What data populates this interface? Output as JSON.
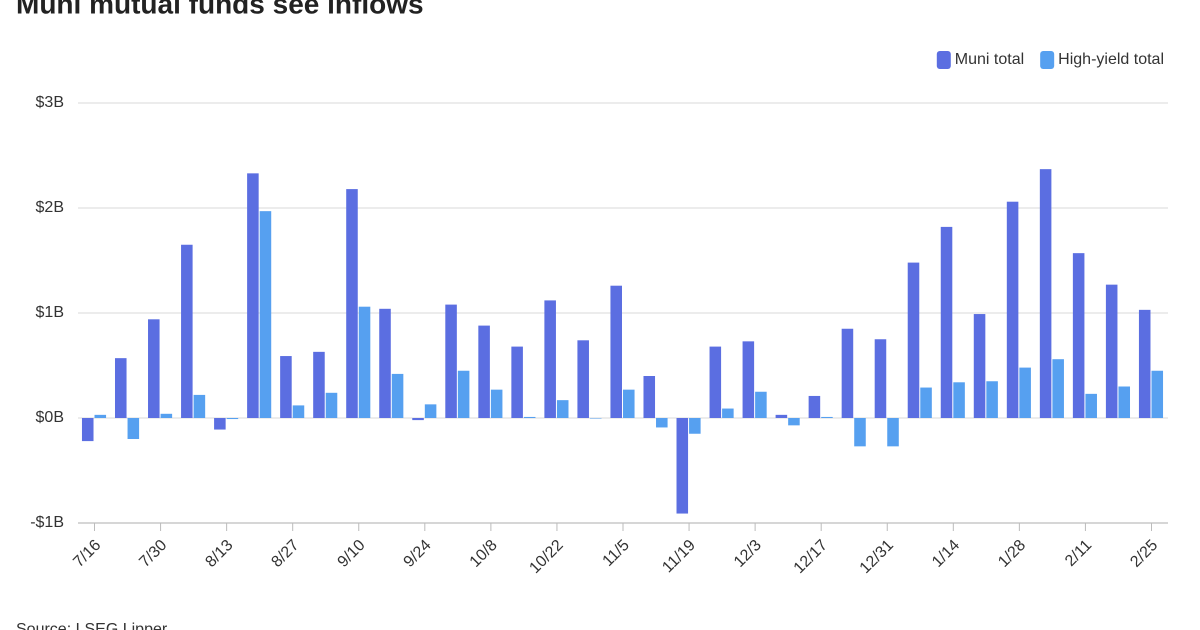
{
  "chart_data": {
    "type": "bar",
    "title": "Muni mutual funds see inflows",
    "source": "Source: LSEG Lipper",
    "categories": [
      "7/16",
      null,
      "7/30",
      null,
      "8/13",
      null,
      "8/27",
      null,
      "9/10",
      null,
      "9/24",
      null,
      "10/8",
      null,
      "10/22",
      null,
      "11/5",
      null,
      "11/19",
      null,
      "12/3",
      null,
      "12/17",
      null,
      "12/31",
      null,
      "1/14",
      null,
      "1/28",
      null,
      "2/11",
      null,
      "2/25"
    ],
    "series": [
      {
        "name": "Muni total",
        "color": "#5b6ee1",
        "values": [
          -0.22,
          0.57,
          0.94,
          1.65,
          -0.11,
          2.33,
          0.59,
          0.63,
          2.18,
          1.04,
          -0.02,
          1.08,
          0.88,
          0.68,
          1.12,
          0.74,
          1.26,
          0.4,
          -0.91,
          0.68,
          0.73,
          0.03,
          0.21,
          0.85,
          0.75,
          1.48,
          1.82,
          0.99,
          2.06,
          2.37,
          1.57,
          1.27,
          1.03
        ]
      },
      {
        "name": "High-yield total",
        "color": "#56a0f0",
        "values": [
          0.03,
          -0.2,
          0.04,
          0.22,
          -0.01,
          1.97,
          0.12,
          0.24,
          1.06,
          0.42,
          0.13,
          0.45,
          0.27,
          0.01,
          0.17,
          0.0,
          0.27,
          -0.09,
          -0.15,
          0.09,
          0.25,
          -0.07,
          0.01,
          -0.27,
          -0.27,
          0.29,
          0.34,
          0.35,
          0.48,
          0.56,
          0.23,
          0.3,
          0.45
        ]
      }
    ],
    "ylim": [
      -1,
      3
    ],
    "yticks": [
      {
        "value": -1,
        "label": "-$1B"
      },
      {
        "value": 0,
        "label": "$0B"
      },
      {
        "value": 1,
        "label": "$1B"
      },
      {
        "value": 2,
        "label": "$2B"
      },
      {
        "value": 3,
        "label": "$3B"
      }
    ],
    "grid": true,
    "legend": "top-right"
  }
}
